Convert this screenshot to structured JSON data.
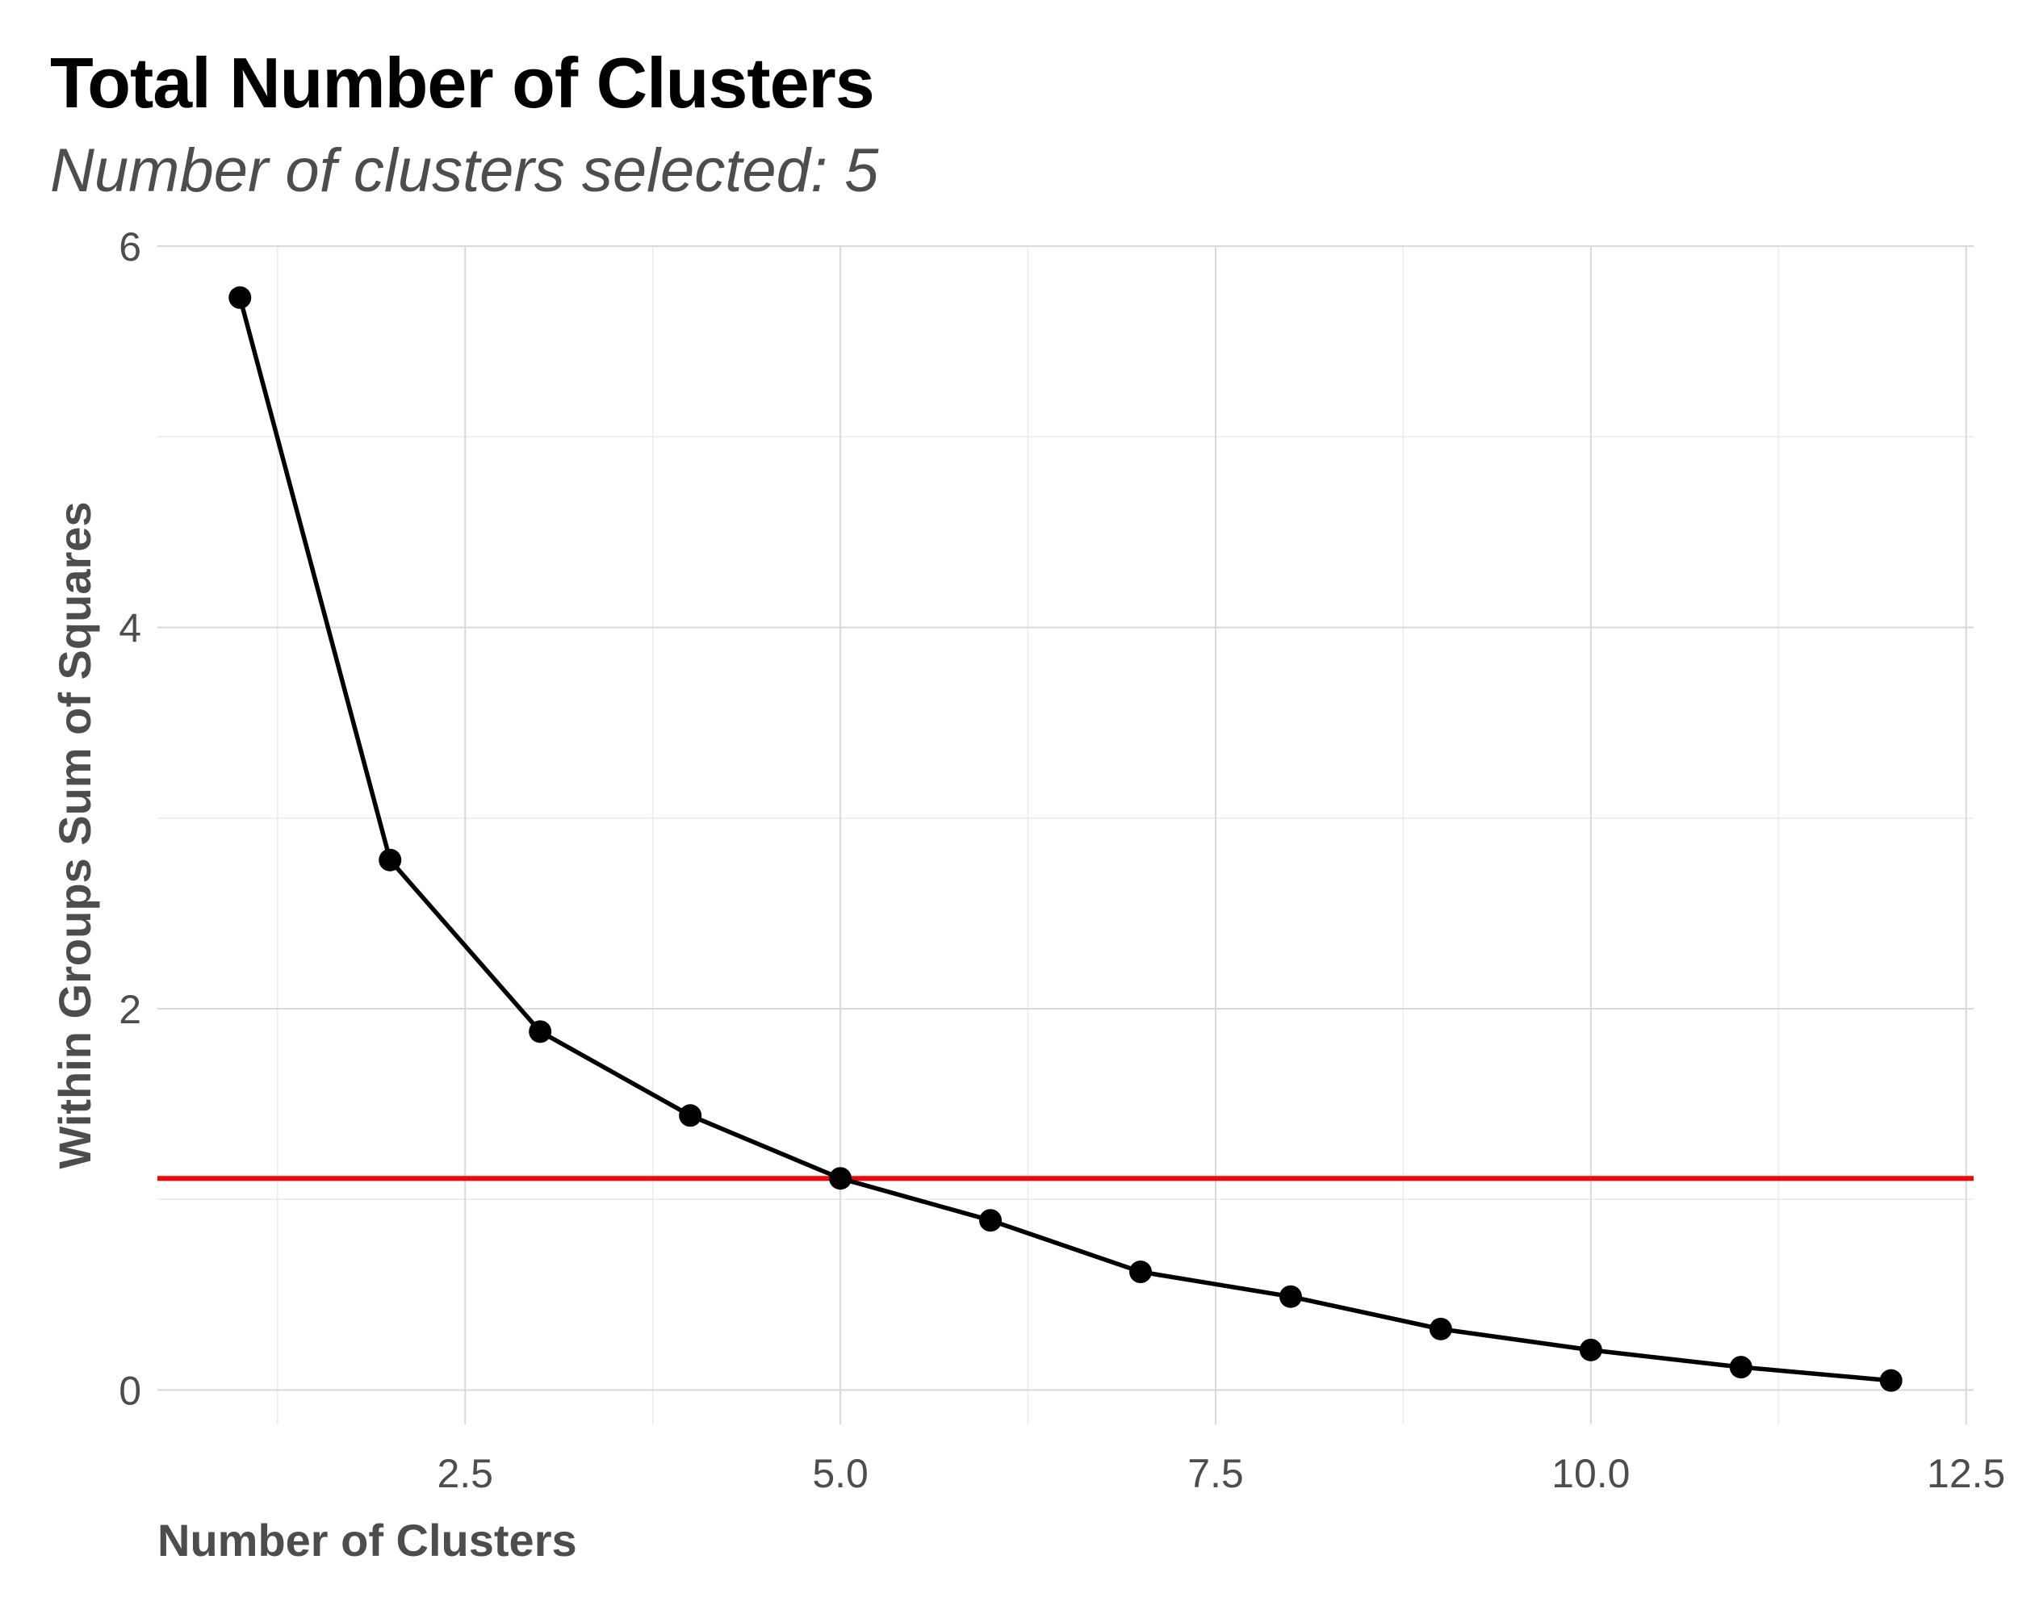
{
  "header": {
    "title": "Total Number of Clusters",
    "subtitle": "Number of clusters selected: 5"
  },
  "chart_data": {
    "type": "line",
    "title": "Total Number of Clusters",
    "subtitle": "Number of clusters selected: 5",
    "xlabel": "Number of Clusters",
    "ylabel": "Within Groups Sum of Squares",
    "xlim": [
      0.45,
      12.55
    ],
    "ylim": [
      -0.18,
      6.0
    ],
    "x_ticks": [
      2.5,
      5.0,
      7.5,
      10.0,
      12.5
    ],
    "x_tick_labels": [
      "2.5",
      "5.0",
      "7.5",
      "10.0",
      "12.5"
    ],
    "x_minor_ticks": [
      1.25,
      3.75,
      6.25,
      8.75,
      11.25
    ],
    "y_ticks": [
      0,
      2,
      4,
      6
    ],
    "y_tick_labels": [
      "0",
      "2",
      "4",
      "6"
    ],
    "y_minor_ticks": [
      1,
      3,
      5
    ],
    "grid": true,
    "series": [
      {
        "x": [
          1,
          2,
          3,
          4,
          5,
          6,
          7,
          8,
          9,
          10,
          11,
          12
        ],
        "values": [
          5.73,
          2.78,
          1.88,
          1.44,
          1.11,
          0.89,
          0.62,
          0.49,
          0.32,
          0.21,
          0.12,
          0.05
        ],
        "color": "#000000",
        "markers": true
      }
    ],
    "reference_line": {
      "y": 1.11,
      "color": "#ff0000"
    },
    "colors": {
      "grid_major": "#d9d9d9",
      "grid_minor": "#ebebeb",
      "text": "#4d4d4d",
      "line": "#000000",
      "reference": "#ff0000"
    }
  }
}
